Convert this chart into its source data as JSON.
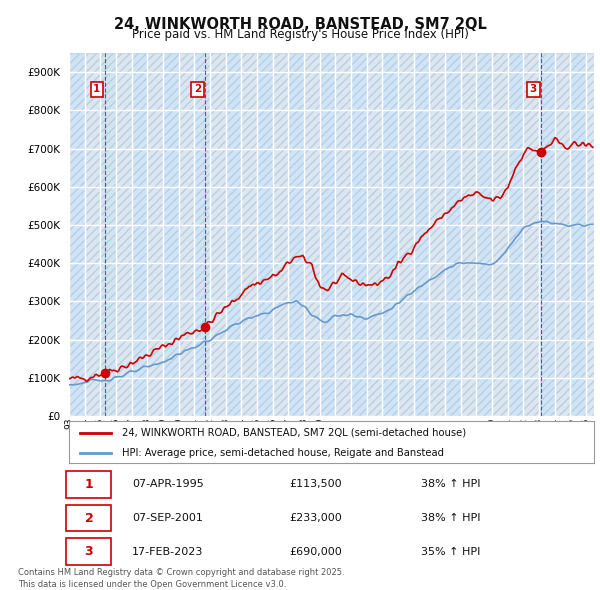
{
  "title": "24, WINKWORTH ROAD, BANSTEAD, SM7 2QL",
  "subtitle": "Price paid vs. HM Land Registry's House Price Index (HPI)",
  "ylim": [
    0,
    950000
  ],
  "yticks": [
    0,
    100000,
    200000,
    300000,
    400000,
    500000,
    600000,
    700000,
    800000,
    900000
  ],
  "background_color": "#ffffff",
  "plot_bg_color": "#dce6f1",
  "grid_color": "#ffffff",
  "legend_label_red": "24, WINKWORTH ROAD, BANSTEAD, SM7 2QL (semi-detached house)",
  "legend_label_blue": "HPI: Average price, semi-detached house, Reigate and Banstead",
  "transactions": [
    {
      "num": 1,
      "date": "07-APR-1995",
      "price": 113500,
      "pct": "38%",
      "x_year": 1995.27
    },
    {
      "num": 2,
      "date": "07-SEP-2001",
      "price": 233000,
      "pct": "38%",
      "x_year": 2001.69
    },
    {
      "num": 3,
      "date": "17-FEB-2023",
      "price": 690000,
      "pct": "35%",
      "x_year": 2023.13
    }
  ],
  "red_line_color": "#cc0000",
  "blue_line_color": "#6699cc",
  "footnote": "Contains HM Land Registry data © Crown copyright and database right 2025.\nThis data is licensed under the Open Government Licence v3.0.",
  "xmin": 1993.0,
  "xmax": 2026.5,
  "col_highlight_color": "#d0e4f7"
}
